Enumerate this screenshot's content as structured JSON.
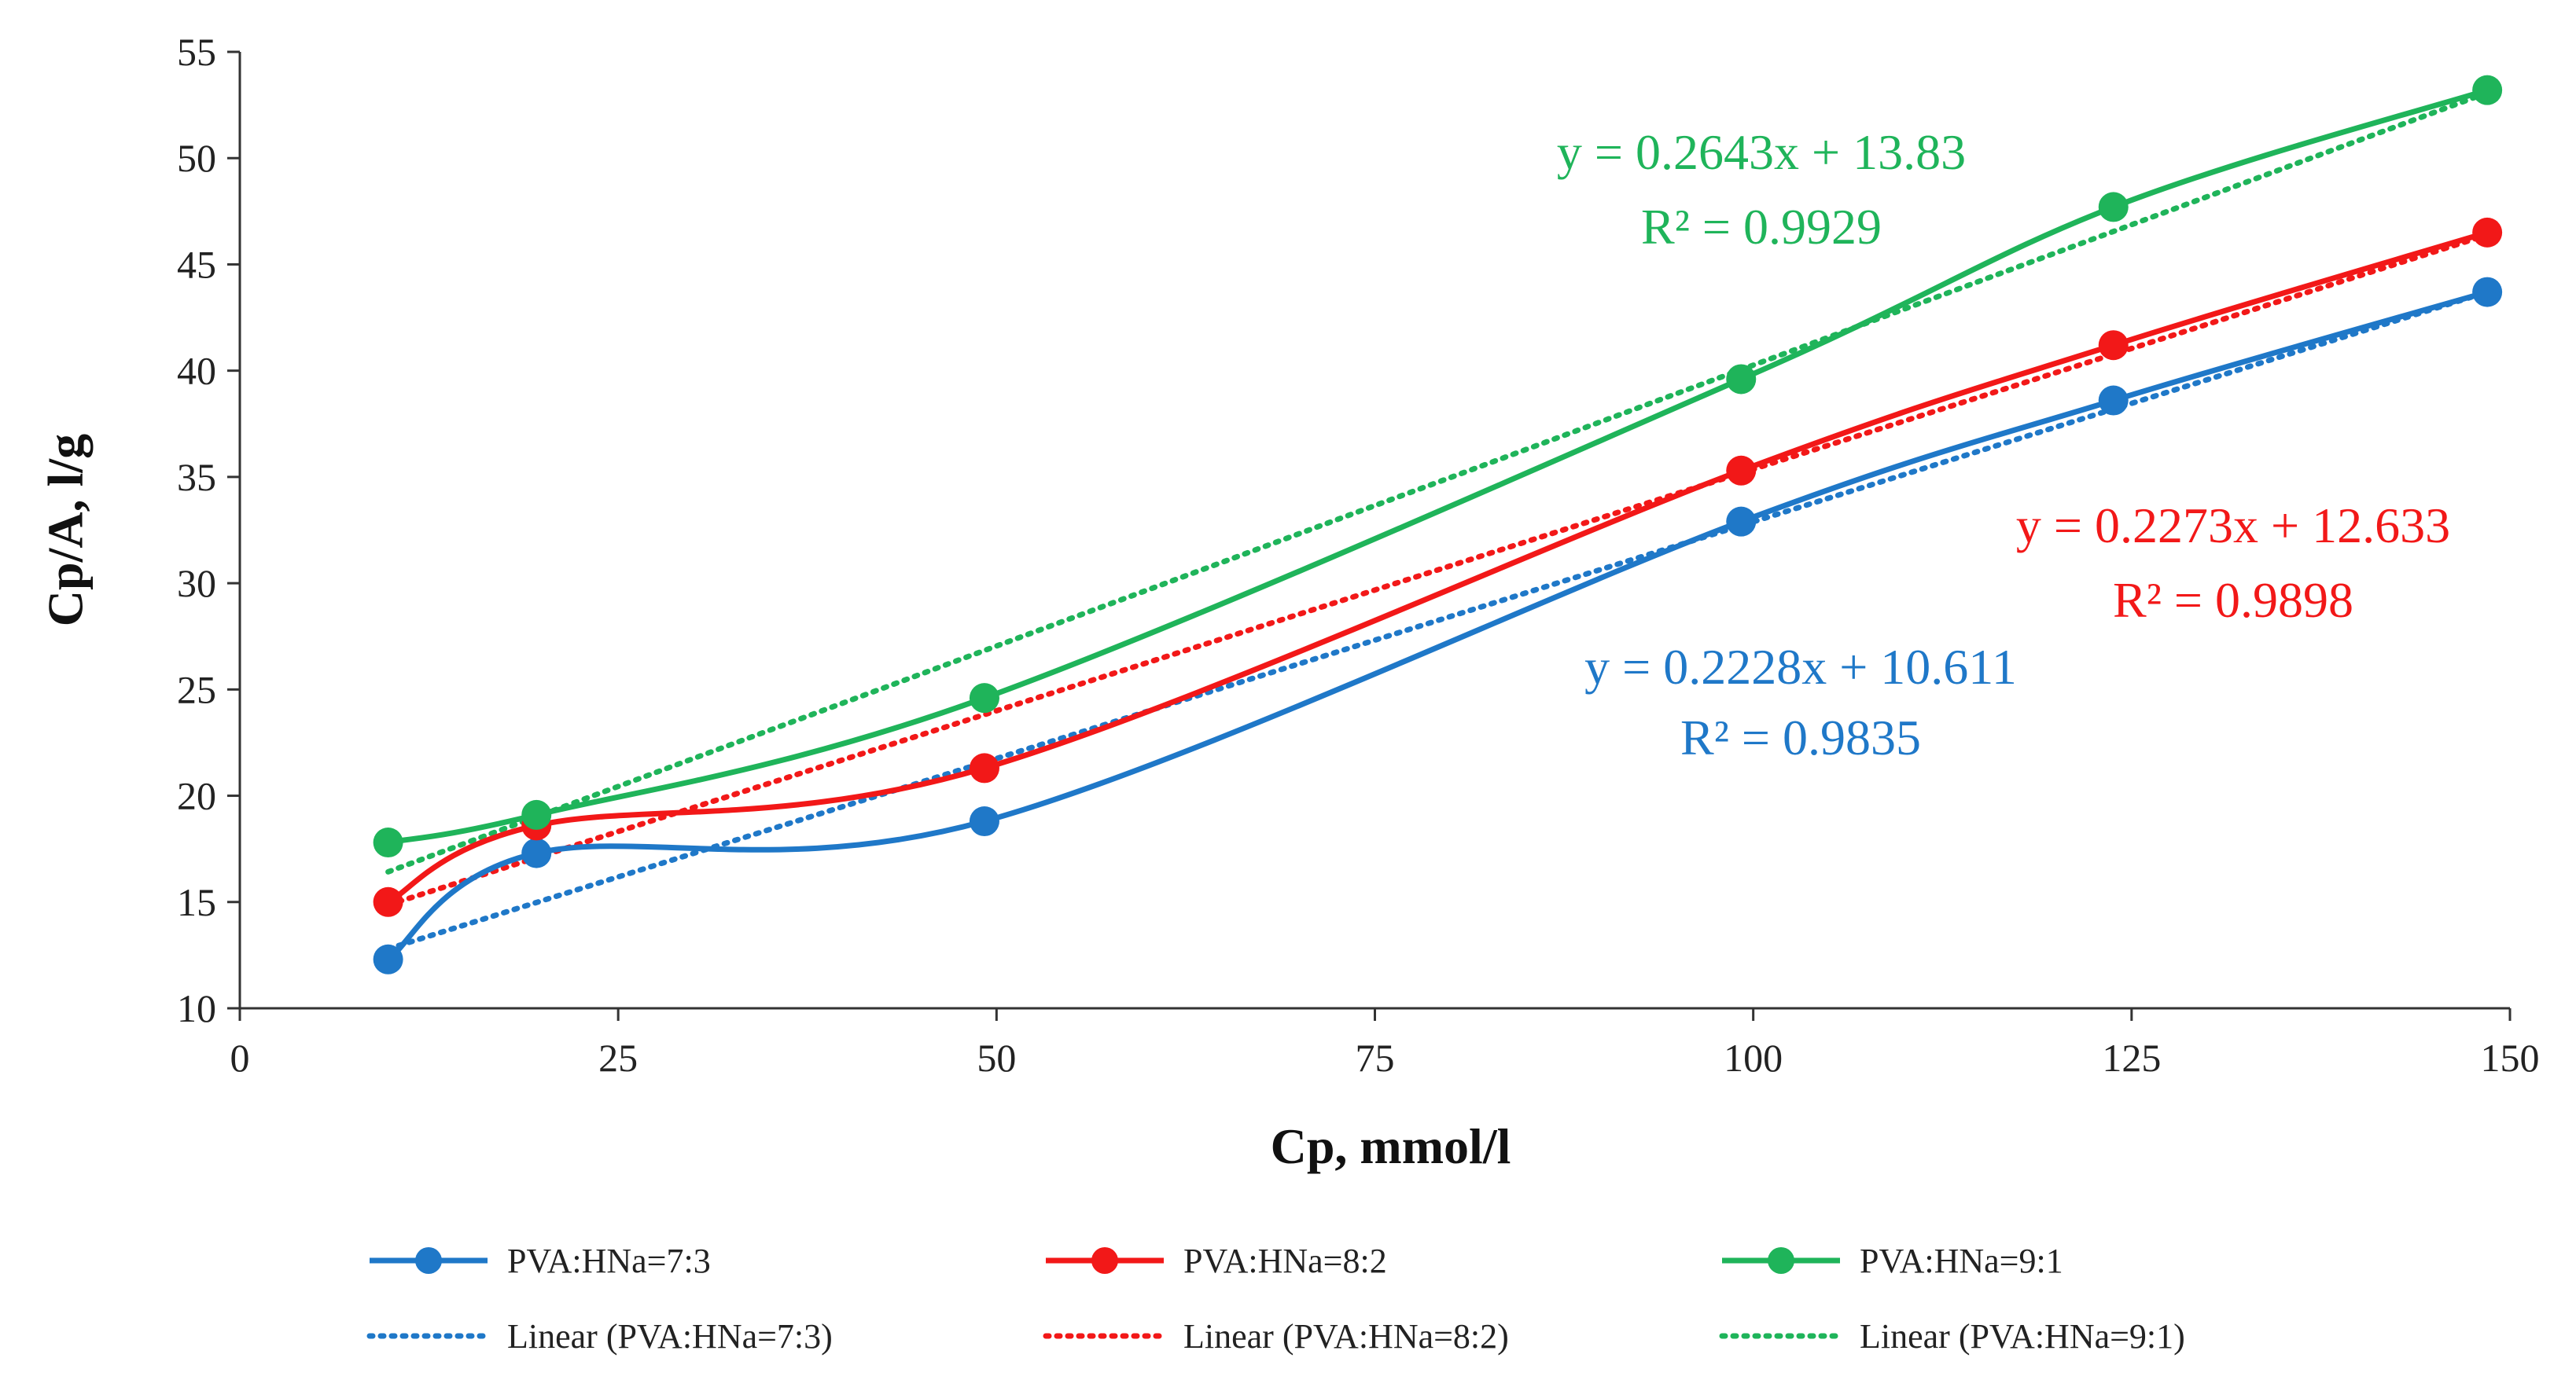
{
  "chart_data": {
    "type": "line",
    "xlabel": "Cp, mmol/l",
    "ylabel": "Cp/A, l/g",
    "xlim": [
      0,
      150
    ],
    "ylim": [
      10,
      55
    ],
    "xticks": [
      0,
      25,
      50,
      75,
      100,
      125,
      150
    ],
    "yticks": [
      10,
      15,
      20,
      25,
      30,
      35,
      40,
      45,
      50,
      55
    ],
    "grid": false,
    "legend_position": "bottom",
    "x": [
      9.8,
      19.6,
      49.2,
      99.2,
      123.8,
      148.5
    ],
    "series": [
      {
        "name": "PVA:HNa=7:3",
        "color": "#1f78c8",
        "values": [
          12.3,
          17.3,
          18.8,
          32.9,
          38.6,
          43.7
        ],
        "trendline": {
          "name": "Linear (PVA:HNa=7:3)",
          "slope": 0.2228,
          "intercept": 10.611,
          "equation": "y = 0.2228x + 10.611",
          "r2": "R² = 0.9835"
        }
      },
      {
        "name": "PVA:HNa=8:2",
        "color": "#f21818",
        "values": [
          15.0,
          18.6,
          21.3,
          35.3,
          41.2,
          46.5
        ],
        "trendline": {
          "name": "Linear (PVA:HNa=8:2)",
          "slope": 0.2273,
          "intercept": 12.633,
          "equation": "y = 0.2273x + 12.633",
          "r2": "R² = 0.9898"
        }
      },
      {
        "name": "PVA:HNa=9:1",
        "color": "#1fb45a",
        "values": [
          17.8,
          19.1,
          24.6,
          39.6,
          47.7,
          53.2
        ],
        "trendline": {
          "name": "Linear (PVA:HNa=9:1)",
          "slope": 0.2643,
          "intercept": 13.83,
          "equation": "y = 0.2643x + 13.83",
          "r2": "R² = 0.9929"
        }
      }
    ]
  }
}
